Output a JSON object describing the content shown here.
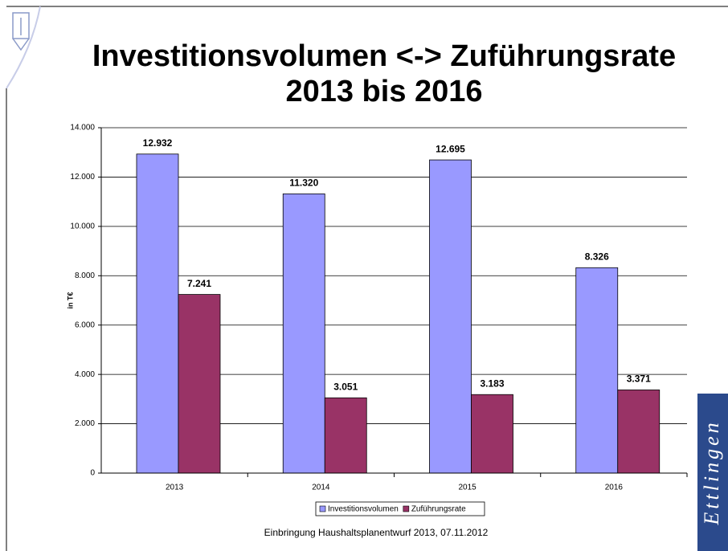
{
  "chart_data": {
    "type": "bar",
    "title_lines": [
      "Investitionsvolumen <-> Zuführungsrate",
      "2013 bis 2016"
    ],
    "y_label": "in T€",
    "categories": [
      "2013",
      "2014",
      "2015",
      "2016"
    ],
    "series": [
      {
        "name": "Investitionsvolumen",
        "color": "#9999ff",
        "values": [
          12932,
          11320,
          12695,
          8326
        ],
        "value_labels": [
          "12.932",
          "11.320",
          "12.695",
          "8.326"
        ]
      },
      {
        "name": "Zuführungsrate",
        "color": "#993366",
        "values": [
          7241,
          3051,
          3183,
          3371
        ],
        "value_labels": [
          "7.241",
          "3.051",
          "3.183",
          "3.371"
        ]
      }
    ],
    "ylim": [
      0,
      14000
    ],
    "yticks": [
      0,
      {
        "value": 2000,
        "label": "2.000"
      },
      {
        "value": 4000,
        "label": "4.000"
      },
      {
        "value": 6000,
        "label": "6.000"
      },
      {
        "value": 8000,
        "label": "8.000"
      },
      {
        "value": 10000,
        "label": "10.000"
      },
      {
        "value": 12000,
        "label": "12.000"
      },
      {
        "value": 14000,
        "label": "14.000"
      }
    ],
    "grid": true,
    "legend": "bottom",
    "footer": "Einbringung Haushaltsplanentwurf 2013, 07.11.2012",
    "brand": "Ettlingen"
  }
}
